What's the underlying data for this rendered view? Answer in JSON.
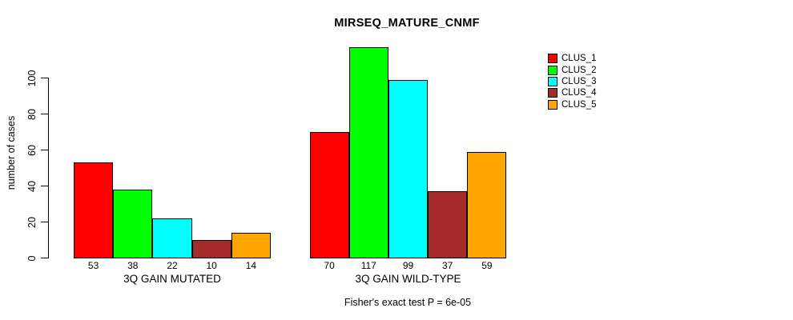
{
  "chart_data": {
    "type": "bar",
    "title": "MIRSEQ_MATURE_CNMF",
    "ylabel": "number of cases",
    "xlabel": "",
    "yticks": [
      0,
      20,
      40,
      60,
      80,
      100
    ],
    "ylim": [
      0,
      120
    ],
    "grid": false,
    "legend_position": "right",
    "value_labels_under_bars": true,
    "series": [
      {
        "name": "CLUS_1",
        "color": "#FF0000"
      },
      {
        "name": "CLUS_2",
        "color": "#00FF00"
      },
      {
        "name": "CLUS_3",
        "color": "#00FFFF"
      },
      {
        "name": "CLUS_4",
        "color": "#A52A2A"
      },
      {
        "name": "CLUS_5",
        "color": "#FFA500"
      }
    ],
    "groups": [
      {
        "label": "3Q GAIN MUTATED",
        "values": [
          53,
          38,
          22,
          10,
          14
        ]
      },
      {
        "label": "3Q GAIN WILD-TYPE",
        "values": [
          70,
          117,
          99,
          37,
          59
        ]
      }
    ],
    "annotation": "Fisher's exact test P = 6e-05"
  }
}
